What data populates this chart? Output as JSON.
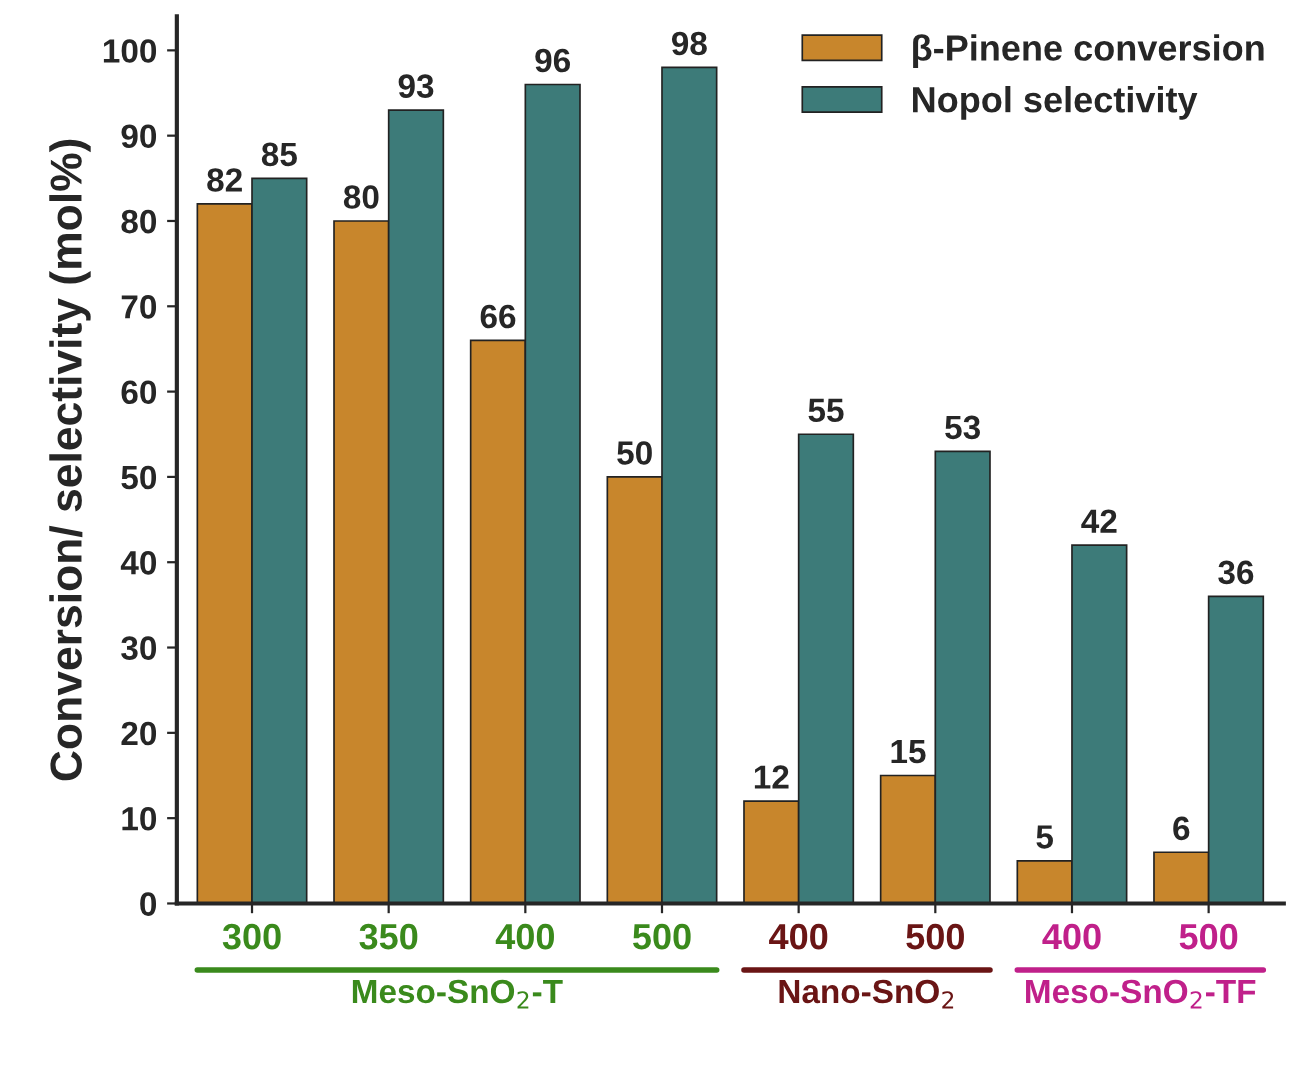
{
  "chart_data": {
    "type": "bar",
    "categories": [
      "300",
      "350",
      "400",
      "500",
      "400",
      "500",
      "400",
      "500"
    ],
    "series": [
      {
        "name": "β-Pinene conversion",
        "color": "#c8862c",
        "values": [
          82,
          80,
          66,
          50,
          12,
          15,
          5,
          6
        ]
      },
      {
        "name": "Nopol selectivity",
        "color": "#3d7b79",
        "values": [
          85,
          93,
          96,
          98,
          55,
          53,
          42,
          36
        ]
      }
    ],
    "ylabel": "Conversion/ selectivity (mol%)",
    "ylim": [
      0,
      104
    ],
    "yticks": [
      0,
      10,
      20,
      30,
      40,
      50,
      60,
      70,
      80,
      90,
      100
    ],
    "annotations": [
      "Meso-SnO$_{2}$-T",
      "Nano-SnO$_{2}$",
      "Meso-SnO$_{2}$-TF"
    ],
    "data_labels": true,
    "legend": "top right",
    "grid": false
  }
}
